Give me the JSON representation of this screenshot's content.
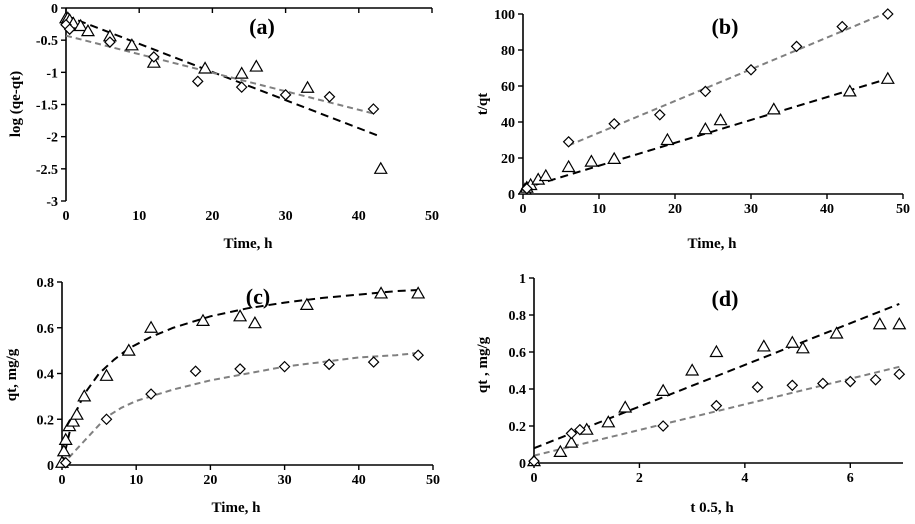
{
  "chart_data": [
    {
      "type": "scatter",
      "panel_label": "(a)",
      "xlabel": "Time, h",
      "ylabel": "log (qe-qt)",
      "xlim": [
        0,
        50
      ],
      "ylim": [
        -3,
        0
      ],
      "xticks": [
        0,
        10,
        20,
        30,
        40,
        50
      ],
      "xtick_labels": [
        "0",
        "10",
        "20",
        "30",
        "40",
        "50"
      ],
      "yticks": [
        0,
        -0.5,
        -1,
        -1.5,
        -2,
        -2.5,
        -3
      ],
      "ytick_labels": [
        "0",
        "-0.5",
        "-1",
        "-1.5",
        "-2",
        "-2.5",
        "-3"
      ],
      "grid": false,
      "series": [
        {
          "marker": "triangle",
          "points": [
            [
              0,
              -0.16
            ],
            [
              0.25,
              -0.16
            ],
            [
              0.5,
              -0.19
            ],
            [
              1,
              -0.24
            ],
            [
              2,
              -0.28
            ],
            [
              3,
              -0.36
            ],
            [
              6,
              -0.44
            ],
            [
              9,
              -0.58
            ],
            [
              12,
              -0.85
            ],
            [
              19,
              -0.94
            ],
            [
              24,
              -1.02
            ],
            [
              26,
              -0.91
            ],
            [
              33,
              -1.24
            ],
            [
              43,
              -2.5
            ]
          ],
          "fit": {
            "x": [
              0,
              43
            ],
            "y": [
              -0.12,
              -2.0
            ],
            "color": "#000000",
            "dash": "8,5"
          }
        },
        {
          "marker": "diamond",
          "points": [
            [
              0,
              -0.26
            ],
            [
              0.5,
              -0.33
            ],
            [
              6,
              -0.53
            ],
            [
              12,
              -0.76
            ],
            [
              18,
              -1.14
            ],
            [
              24,
              -1.23
            ],
            [
              30,
              -1.35
            ],
            [
              36,
              -1.38
            ],
            [
              42,
              -1.57
            ]
          ],
          "fit": {
            "x": [
              0,
              42
            ],
            "y": [
              -0.43,
              -1.64
            ],
            "color": "#808080",
            "dash": "6,4"
          }
        }
      ]
    },
    {
      "type": "scatter",
      "panel_label": "(b)",
      "xlabel": "Time, h",
      "ylabel": "t/qt",
      "xlim": [
        0,
        50
      ],
      "ylim": [
        0,
        100
      ],
      "xticks": [
        0,
        10,
        20,
        30,
        40,
        50
      ],
      "xtick_labels": [
        "0",
        "10",
        "20",
        "30",
        "40",
        "50"
      ],
      "yticks": [
        0,
        20,
        40,
        60,
        80,
        100
      ],
      "ytick_labels": [
        "0",
        "20",
        "40",
        "60",
        "80",
        "100"
      ],
      "grid": false,
      "series": [
        {
          "marker": "triangle",
          "points": [
            [
              0.25,
              2.5
            ],
            [
              0.5,
              3.5
            ],
            [
              1,
              5
            ],
            [
              2,
              8
            ],
            [
              3,
              10
            ],
            [
              6,
              15
            ],
            [
              9,
              18
            ],
            [
              12,
              19.5
            ],
            [
              19,
              30
            ],
            [
              24,
              36
            ],
            [
              26,
              41
            ],
            [
              33,
              47
            ],
            [
              43,
              57
            ],
            [
              48,
              64
            ]
          ],
          "fit": {
            "x": [
              0,
              48
            ],
            "y": [
              3,
              64
            ],
            "color": "#000000",
            "dash": "8,5"
          }
        },
        {
          "marker": "diamond",
          "points": [
            [
              0.5,
              3
            ],
            [
              6,
              29
            ],
            [
              12,
              39
            ],
            [
              18,
              44
            ],
            [
              24,
              57
            ],
            [
              30,
              69
            ],
            [
              36,
              82
            ],
            [
              42,
              93
            ],
            [
              48,
              100
            ]
          ],
          "fit": {
            "x": [
              6,
              48
            ],
            "y": [
              27,
              101
            ],
            "color": "#808080",
            "dash": "6,4"
          }
        }
      ]
    },
    {
      "type": "scatter",
      "panel_label": "(c)",
      "xlabel": "Time, h",
      "ylabel": "qt, mg/g",
      "xlim": [
        0,
        50
      ],
      "ylim": [
        0,
        0.8
      ],
      "xticks": [
        0,
        10,
        20,
        30,
        40,
        50
      ],
      "xtick_labels": [
        "0",
        "10",
        "20",
        "30",
        "40",
        "50"
      ],
      "yticks": [
        0,
        0.2,
        0.4,
        0.6,
        0.8
      ],
      "ytick_labels": [
        "0",
        "0.2",
        "0.4",
        "0.6",
        "0.8"
      ],
      "grid": false,
      "series": [
        {
          "marker": "triangle",
          "points": [
            [
              0,
              0.01
            ],
            [
              0.25,
              0.06
            ],
            [
              0.5,
              0.11
            ],
            [
              1,
              0.17
            ],
            [
              1.5,
              0.19
            ],
            [
              2,
              0.22
            ],
            [
              3,
              0.3
            ],
            [
              6,
              0.39
            ],
            [
              9,
              0.5
            ],
            [
              12,
              0.6
            ],
            [
              19,
              0.63
            ],
            [
              24,
              0.65
            ],
            [
              26,
              0.62
            ],
            [
              33,
              0.7
            ],
            [
              43,
              0.75
            ],
            [
              48,
              0.75
            ]
          ],
          "fit": {
            "x": [
              0,
              1,
              2,
              3,
              5,
              7,
              9,
              12,
              15,
              20,
              25,
              30,
              35,
              40,
              45,
              48
            ],
            "y": [
              0,
              0.14,
              0.24,
              0.31,
              0.4,
              0.46,
              0.51,
              0.56,
              0.6,
              0.65,
              0.685,
              0.71,
              0.73,
              0.745,
              0.76,
              0.765
            ],
            "color": "#000000",
            "dash": "8,5"
          }
        },
        {
          "marker": "diamond",
          "points": [
            [
              0.5,
              0.01
            ],
            [
              6,
              0.2
            ],
            [
              12,
              0.31
            ],
            [
              18,
              0.41
            ],
            [
              24,
              0.42
            ],
            [
              30,
              0.43
            ],
            [
              36,
              0.44
            ],
            [
              42,
              0.45
            ],
            [
              48,
              0.48
            ]
          ],
          "fit": {
            "x": [
              0,
              2,
              4,
              6,
              8,
              10,
              15,
              20,
              25,
              30,
              35,
              40,
              45,
              48
            ],
            "y": [
              0,
              0.07,
              0.14,
              0.21,
              0.25,
              0.28,
              0.33,
              0.37,
              0.4,
              0.43,
              0.45,
              0.47,
              0.48,
              0.49
            ],
            "color": "#808080",
            "dash": "6,4"
          }
        }
      ]
    },
    {
      "type": "scatter",
      "panel_label": "(d)",
      "xlabel": "t 0.5, h",
      "ylabel": "qt , mg/g",
      "xlim": [
        0,
        7
      ],
      "ylim": [
        0,
        1
      ],
      "xticks": [
        0,
        2,
        4,
        6
      ],
      "xtick_labels": [
        "0",
        "2",
        "4",
        "6"
      ],
      "yticks": [
        0,
        0.2,
        0.4,
        0.6,
        0.8,
        1
      ],
      "ytick_labels": [
        "0",
        "0.2",
        "0.4",
        "0.6",
        "0.8",
        "1"
      ],
      "grid": false,
      "series": [
        {
          "marker": "triangle",
          "points": [
            [
              0,
              0.01
            ],
            [
              0.5,
              0.06
            ],
            [
              0.71,
              0.11
            ],
            [
              1,
              0.18
            ],
            [
              1.41,
              0.22
            ],
            [
              1.73,
              0.3
            ],
            [
              2.45,
              0.39
            ],
            [
              3,
              0.5
            ],
            [
              3.46,
              0.6
            ],
            [
              4.36,
              0.63
            ],
            [
              4.9,
              0.65
            ],
            [
              5.1,
              0.62
            ],
            [
              5.74,
              0.7
            ],
            [
              6.56,
              0.75
            ],
            [
              6.93,
              0.75
            ]
          ],
          "fit": {
            "x": [
              0,
              6.93
            ],
            "y": [
              0.08,
              0.86
            ],
            "color": "#000000",
            "dash": "8,5"
          }
        },
        {
          "marker": "diamond",
          "points": [
            [
              0,
              0.01
            ],
            [
              0.71,
              0.16
            ],
            [
              0.87,
              0.18
            ],
            [
              2.45,
              0.2
            ],
            [
              3.46,
              0.31
            ],
            [
              4.24,
              0.41
            ],
            [
              4.9,
              0.42
            ],
            [
              5.48,
              0.43
            ],
            [
              6,
              0.44
            ],
            [
              6.48,
              0.45
            ],
            [
              6.93,
              0.48
            ]
          ],
          "fit": {
            "x": [
              0,
              6.93
            ],
            "y": [
              0.04,
              0.52
            ],
            "color": "#808080",
            "dash": "6,4"
          }
        }
      ]
    }
  ]
}
